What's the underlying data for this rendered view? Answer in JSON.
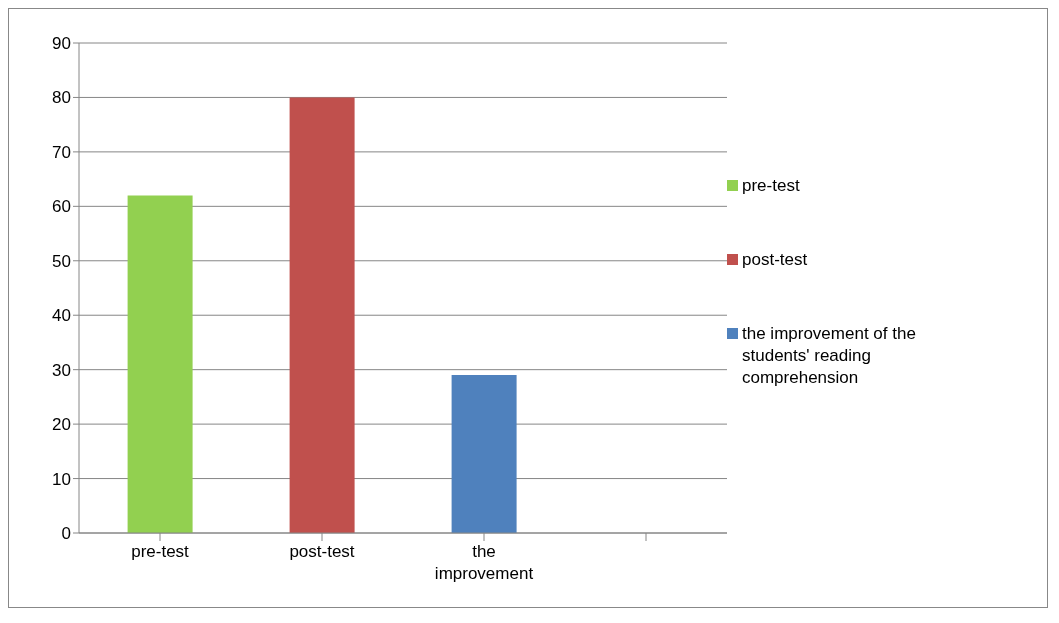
{
  "chart_data": {
    "type": "bar",
    "stacked": true,
    "categories": [
      "pre-test",
      "post-test",
      "the improvement",
      null
    ],
    "series": [
      {
        "name": "pre-test",
        "color": "#92d050",
        "values": [
          62,
          null,
          null,
          null
        ]
      },
      {
        "name": "post-test",
        "color": "#c0504d",
        "values": [
          null,
          80,
          null,
          null
        ]
      },
      {
        "name": "the improvement of the students' reading comprehension",
        "color": "#4f81bd",
        "values": [
          null,
          null,
          29,
          null
        ]
      }
    ],
    "ylim": [
      0,
      90
    ],
    "yticks": [
      0,
      10,
      20,
      30,
      40,
      50,
      60,
      70,
      80,
      90
    ],
    "grid": "y",
    "legend": "right"
  }
}
